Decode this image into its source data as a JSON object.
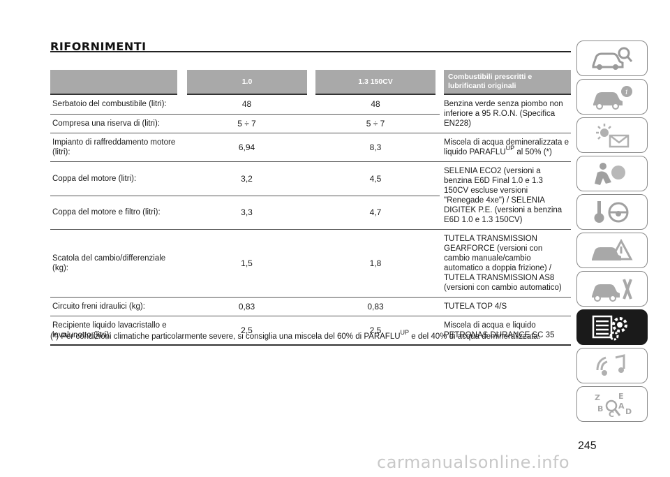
{
  "page": {
    "title": "RIFORNIMENTI",
    "page_number": "245",
    "watermark": "carmanualsonline.info"
  },
  "table": {
    "headers": [
      "",
      "1.0",
      "1.3 150CV",
      "Combustibili prescritti e lubrificanti originali"
    ],
    "rows": [
      {
        "label": "Serbatoio del combustibile (litri):",
        "v1": "48",
        "v2": "48"
      },
      {
        "label": "Compresa una riserva di (litri):",
        "v1": "5 ÷ 7",
        "v2": "5 ÷ 7"
      },
      {
        "label": "Impianto di raffreddamento motore (litri):",
        "v1": "6,94",
        "v2": "8,3"
      },
      {
        "label": "Coppa del motore (litri):",
        "v1": "3,2",
        "v2": "4,5"
      },
      {
        "label": "Coppa del motore e filtro (litri):",
        "v1": "3,3",
        "v2": "4,7"
      },
      {
        "label": "Scatola del cambio/differenziale (kg):",
        "v1": "1,5",
        "v2": "1,8"
      },
      {
        "label": "Circuito freni idraulici (kg):",
        "v1": "0,83",
        "v2": "0,83"
      },
      {
        "label": "Recipiente liquido lavacristallo e lavalunotto (litri):",
        "v1": "2,5",
        "v2": "2,5"
      }
    ],
    "fuels": {
      "fuel_tank": "Benzina verde senza piombo non inferiore a 95 R.O.N. (Specifica EN228)",
      "coolant_pre": "Miscela di acqua demineralizzata e liquido PARAFLU",
      "coolant_sup": "UP",
      "coolant_post": " al 50% (*)",
      "engine_oil": "SELENIA ECO2 (versioni a benzina E6D Final 1.0 e 1.3 150CV escluse versioni \"Renegade 4xe\") / SELENIA DIGITEK P.E. (versioni a benzina E6D 1.0 e 1.3 150CV)",
      "gearbox": "TUTELA TRANSMISSION GEARFORCE (versioni con cambio manuale/cambio automatico a doppia frizione) / TUTELA TRANSMISSION AS8 (versioni con cambio automatico)",
      "brakes": "TUTELA TOP 4/S",
      "washer": "Miscela di acqua e liquido PETRONAS DURANCE SC 35"
    }
  },
  "footnote": {
    "pre": "(*) Per condizioni climatiche particolarmente severe, si consiglia una miscela del 60% di PARAFLU",
    "sup": "UP",
    "post": " e del 40% di acqua demineralizzata."
  },
  "sidebar": {
    "tabs": [
      {
        "icon": "car-search-icon",
        "active": false
      },
      {
        "icon": "car-info-icon",
        "active": false
      },
      {
        "icon": "warning-lights-mail-icon",
        "active": false
      },
      {
        "icon": "airbag-person-icon",
        "active": false
      },
      {
        "icon": "key-steering-wheel-icon",
        "active": false
      },
      {
        "icon": "car-breakdown-icon",
        "active": false
      },
      {
        "icon": "car-maintenance-tools-icon",
        "active": false
      },
      {
        "icon": "technical-data-gear-icon",
        "active": true
      },
      {
        "icon": "multimedia-music-icon",
        "active": false
      },
      {
        "icon": "alphabetical-index-icon",
        "active": false
      }
    ]
  }
}
